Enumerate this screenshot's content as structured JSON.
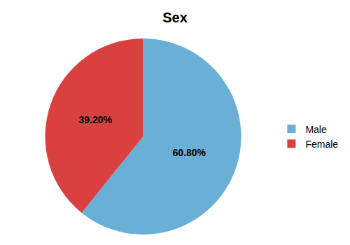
{
  "chart_data": {
    "type": "pie",
    "title": "Sex",
    "categories": [
      "Male",
      "Female"
    ],
    "values": [
      60.8,
      39.2
    ],
    "value_labels": [
      "60.80%",
      "39.20%"
    ],
    "colors": [
      "#6aafd6",
      "#d94040"
    ],
    "data_labels": true,
    "legend": "right"
  }
}
